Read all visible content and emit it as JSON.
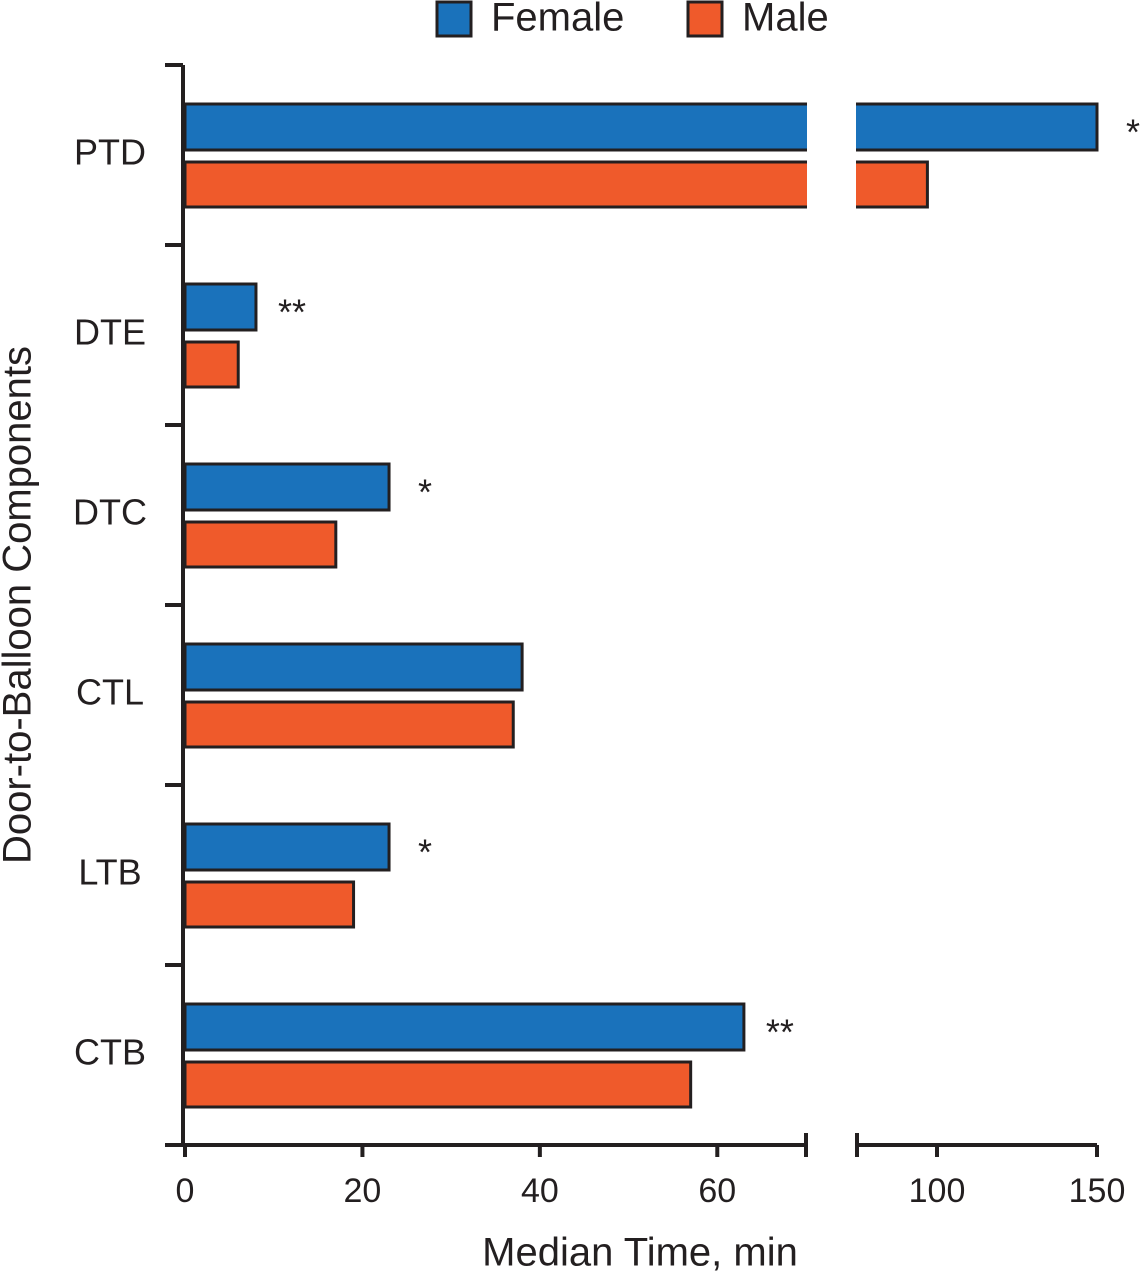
{
  "chart_data": {
    "type": "bar",
    "orientation": "horizontal",
    "x_label": "Median Time, min",
    "y_label": "Door-to-Balloon Components",
    "categories": [
      "PTD",
      "DTE",
      "DTC",
      "CTL",
      "LTB",
      "CTB"
    ],
    "series": [
      {
        "name": "Female",
        "color": "#1a72bb",
        "values": [
          150,
          8,
          23,
          38,
          23,
          63
        ]
      },
      {
        "name": "Male",
        "color": "#ef5a2b",
        "values": [
          97,
          6,
          17,
          37,
          19,
          57
        ]
      }
    ],
    "annotations": [
      "*",
      "**",
      "*",
      null,
      "*",
      "**"
    ],
    "xlim": [
      0,
      150
    ],
    "x_break": [
      70,
      75
    ],
    "xticks": [
      0,
      20,
      40,
      60,
      100,
      150
    ],
    "legend": "top"
  }
}
